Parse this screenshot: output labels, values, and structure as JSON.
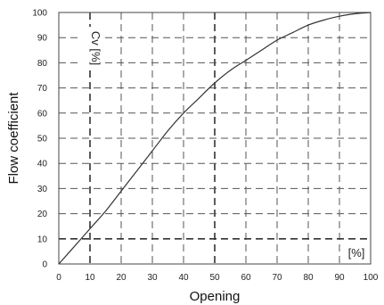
{
  "chart_data": {
    "type": "line",
    "xlabel": "Opening",
    "ylabel": "Flow coefficient",
    "x_unit_label": "[%]",
    "y_unit_label": "Cv [%]",
    "xlim": [
      0,
      100
    ],
    "ylim": [
      0,
      100
    ],
    "x_ticks": [
      "0",
      "10",
      "20",
      "30",
      "40",
      "50",
      "60",
      "70",
      "80",
      "90",
      "100"
    ],
    "y_ticks": [
      "0",
      "10",
      "20",
      "30",
      "40",
      "50",
      "60",
      "70",
      "80",
      "90",
      "100"
    ],
    "grid": true,
    "series": [
      {
        "x": [
          0,
          5,
          10,
          15,
          20,
          25,
          30,
          35,
          40,
          45,
          50,
          55,
          60,
          65,
          70,
          75,
          80,
          85,
          90,
          95,
          100
        ],
        "y": [
          0,
          7,
          14,
          21,
          29,
          37,
          45,
          53,
          60,
          66,
          72,
          77,
          81,
          85,
          89,
          92,
          95,
          97,
          98.5,
          99.5,
          100
        ]
      }
    ],
    "colors": {
      "line": "#333333",
      "grid": "#555555"
    }
  }
}
